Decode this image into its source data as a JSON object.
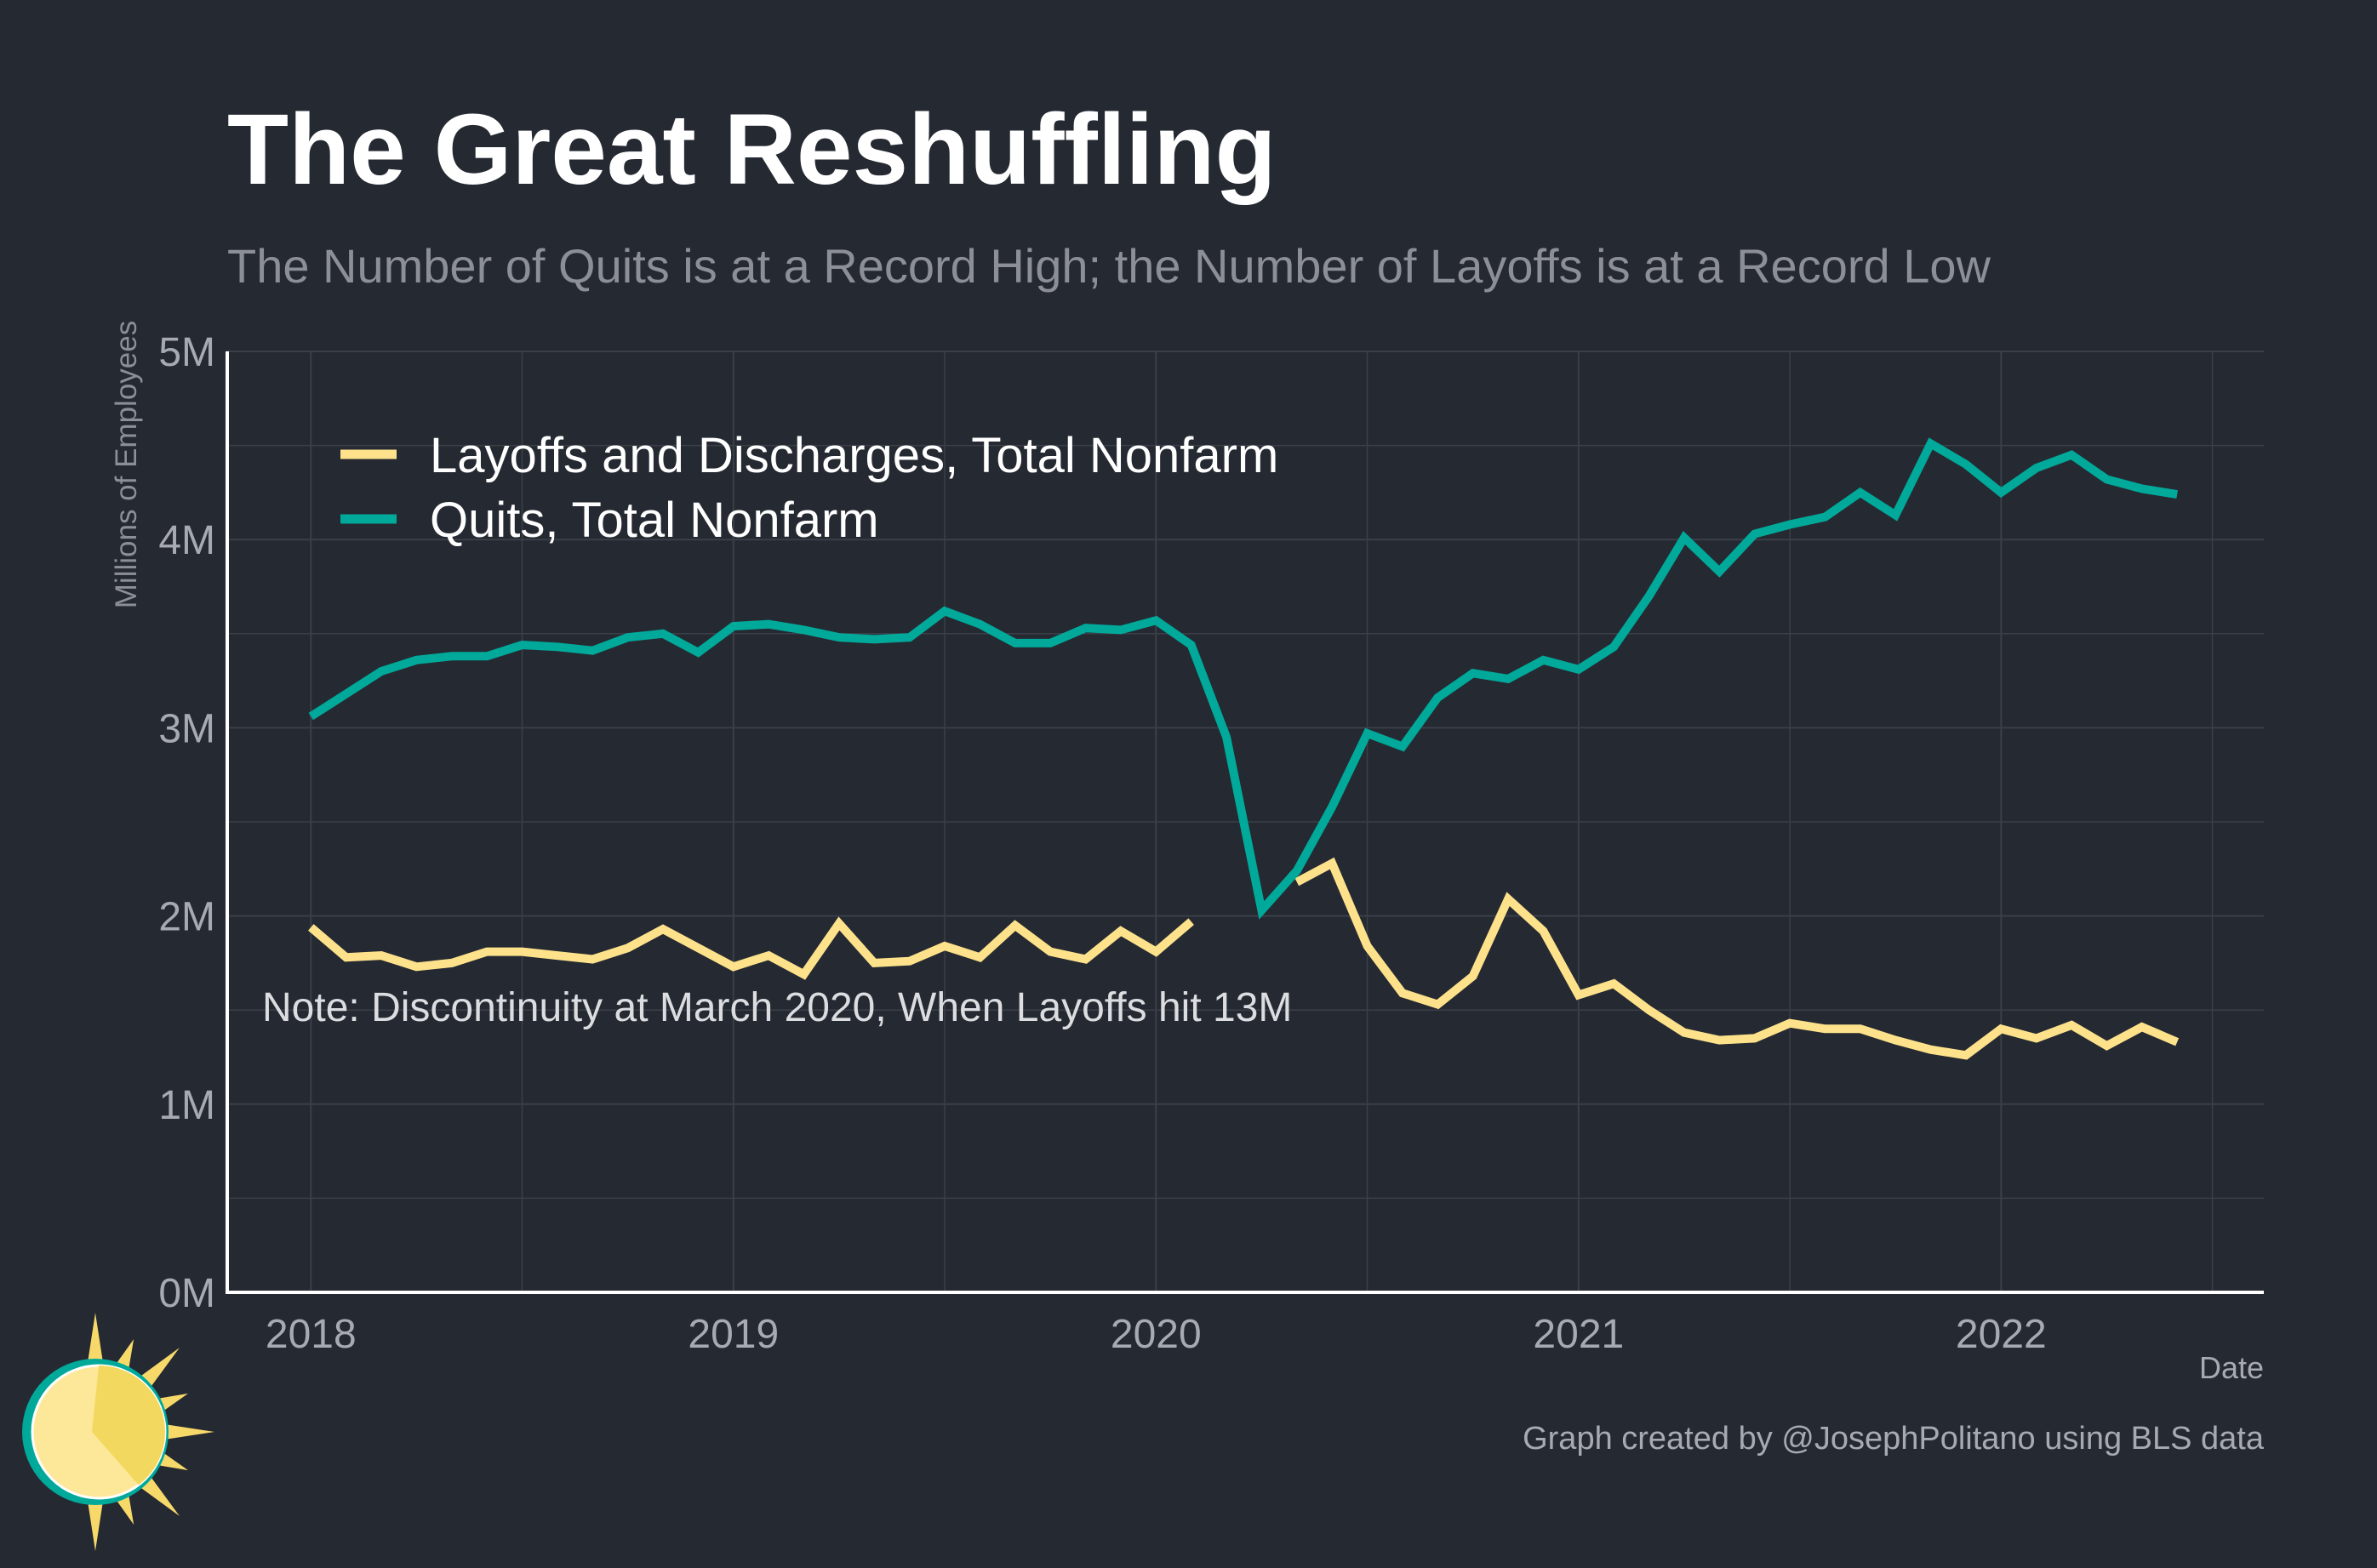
{
  "title": "The Great Reshuffling",
  "subtitle": "The Number of Quits is at a Record High; the Number of Layoffs is at a Record Low",
  "caption": "Graph created by @JosephPolitano using BLS data",
  "note": "Note: Discontinuity at March 2020, When Layoffs hit 13M",
  "logo_icon": "sun-logo-icon",
  "colors": {
    "background": "#252932",
    "grid": "#3b3f48",
    "axis": "#ffffff",
    "layoffs": "#fde28b",
    "quits": "#00a99a"
  },
  "chart_data": {
    "type": "line",
    "title": "The Great Reshuffling",
    "subtitle": "The Number of Quits is at a Record High; the Number of Layoffs is at a Record Low",
    "xlabel": "Date",
    "ylabel": "Millions of Employees",
    "ylim": [
      0,
      5
    ],
    "xlim": [
      "2017-10-20",
      "2022-08-15"
    ],
    "x_ticks": [
      "2018",
      "2019",
      "2020",
      "2021",
      "2022"
    ],
    "y_ticks": [
      "0M",
      "1M",
      "2M",
      "3M",
      "4M",
      "5M"
    ],
    "grid": true,
    "legend_position": "top-left",
    "series": [
      {
        "name": "Layoffs and Discharges, Total Nonfarm",
        "color": "#fde28b",
        "segments": [
          {
            "x": [
              "2018-01",
              "2018-02",
              "2018-03",
              "2018-04",
              "2018-05",
              "2018-06",
              "2018-07",
              "2018-08",
              "2018-09",
              "2018-10",
              "2018-11",
              "2018-12",
              "2019-01",
              "2019-02",
              "2019-03",
              "2019-04",
              "2019-05",
              "2019-06",
              "2019-07",
              "2019-08",
              "2019-09",
              "2019-10",
              "2019-11",
              "2019-12",
              "2020-01",
              "2020-02"
            ],
            "values": [
              1.94,
              1.78,
              1.79,
              1.73,
              1.75,
              1.81,
              1.81,
              1.79,
              1.77,
              1.83,
              1.93,
              1.83,
              1.73,
              1.79,
              1.69,
              1.96,
              1.75,
              1.76,
              1.84,
              1.78,
              1.95,
              1.81,
              1.77,
              1.92,
              1.81,
              1.97
            ]
          },
          {
            "x": [
              "2020-05",
              "2020-06",
              "2020-07",
              "2020-08",
              "2020-09",
              "2020-10",
              "2020-11",
              "2020-12",
              "2021-01",
              "2021-02",
              "2021-03",
              "2021-04",
              "2021-05",
              "2021-06",
              "2021-07",
              "2021-08",
              "2021-09",
              "2021-10",
              "2021-11",
              "2021-12",
              "2022-01",
              "2022-02",
              "2022-03",
              "2022-04",
              "2022-05",
              "2022-06"
            ],
            "values": [
              2.18,
              2.28,
              1.84,
              1.59,
              1.53,
              1.68,
              2.09,
              1.92,
              1.58,
              1.64,
              1.5,
              1.38,
              1.34,
              1.35,
              1.43,
              1.4,
              1.4,
              1.34,
              1.29,
              1.26,
              1.4,
              1.35,
              1.42,
              1.31,
              1.41,
              1.33
            ]
          }
        ]
      },
      {
        "name": "Quits, Total Nonfarm",
        "color": "#00a99a",
        "segments": [
          {
            "x": [
              "2018-01",
              "2018-02",
              "2018-03",
              "2018-04",
              "2018-05",
              "2018-06",
              "2018-07",
              "2018-08",
              "2018-09",
              "2018-10",
              "2018-11",
              "2018-12",
              "2019-01",
              "2019-02",
              "2019-03",
              "2019-04",
              "2019-05",
              "2019-06",
              "2019-07",
              "2019-08",
              "2019-09",
              "2019-10",
              "2019-11",
              "2019-12",
              "2020-01",
              "2020-02",
              "2020-03",
              "2020-04",
              "2020-05",
              "2020-06",
              "2020-07",
              "2020-08",
              "2020-09",
              "2020-10",
              "2020-11",
              "2020-12",
              "2021-01",
              "2021-02",
              "2021-03",
              "2021-04",
              "2021-05",
              "2021-06",
              "2021-07",
              "2021-08",
              "2021-09",
              "2021-10",
              "2021-11",
              "2021-12",
              "2022-01",
              "2022-02",
              "2022-03",
              "2022-04",
              "2022-05",
              "2022-06"
            ],
            "values": [
              3.06,
              3.18,
              3.3,
              3.36,
              3.38,
              3.38,
              3.44,
              3.43,
              3.41,
              3.48,
              3.5,
              3.4,
              3.54,
              3.55,
              3.52,
              3.48,
              3.47,
              3.48,
              3.62,
              3.55,
              3.45,
              3.45,
              3.53,
              3.52,
              3.57,
              3.44,
              2.95,
              2.03,
              2.24,
              2.58,
              2.97,
              2.9,
              3.16,
              3.29,
              3.26,
              3.36,
              3.31,
              3.43,
              3.7,
              4.01,
              3.83,
              4.03,
              4.08,
              4.12,
              4.25,
              4.13,
              4.51,
              4.4,
              4.25,
              4.38,
              4.45,
              4.32,
              4.27,
              4.24
            ]
          }
        ]
      }
    ]
  }
}
